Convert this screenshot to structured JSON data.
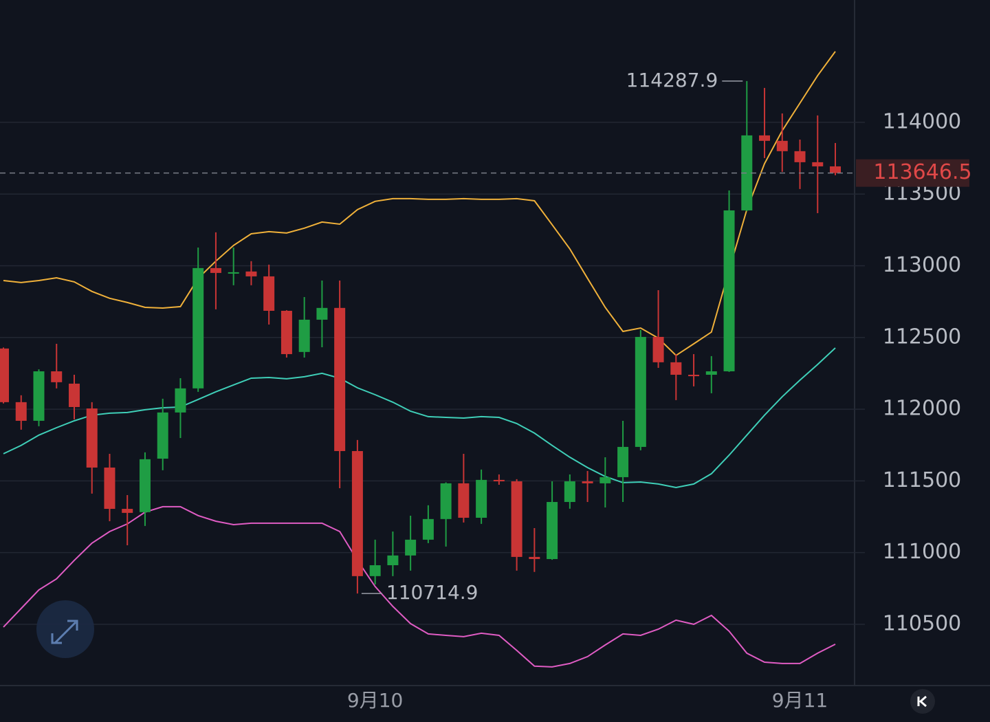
{
  "chart_data": {
    "type": "candlestick",
    "categories": [
      null,
      null,
      null,
      null,
      null,
      null,
      null,
      null,
      null,
      null,
      null,
      null,
      null,
      null,
      null,
      null,
      null,
      null,
      null,
      null,
      null,
      "9月10",
      null,
      null,
      null,
      null,
      null,
      null,
      null,
      null,
      null,
      null,
      null,
      null,
      null,
      null,
      null,
      null,
      null,
      null,
      null,
      null,
      null,
      null,
      null,
      "9月11",
      null,
      null
    ],
    "open": [
      112423,
      112049,
      111919,
      112264,
      112178,
      112005,
      111593,
      111305,
      111282,
      111655,
      111977,
      112145,
      112984,
      112945,
      112960,
      112926,
      112686,
      112399,
      112624,
      112706,
      111708,
      110836,
      110912,
      110980,
      111090,
      111234,
      111483,
      111243,
      111507,
      111497,
      110970,
      110955,
      111353,
      111497,
      111483,
      111526,
      111737,
      112504,
      112327,
      112240,
      112240,
      112264,
      113386,
      113909,
      113871,
      113799,
      113722,
      113693
    ],
    "high": [
      112430,
      112097,
      112278,
      112456,
      112240,
      112049,
      111689,
      111401,
      111699,
      112073,
      112216,
      113127,
      113233,
      113127,
      113032,
      113008,
      112690,
      112782,
      112897,
      112897,
      111785,
      111090,
      111147,
      111257,
      111330,
      111490,
      111689,
      111579,
      111545,
      111512,
      111171,
      111497,
      111545,
      111569,
      111665,
      111919,
      112552,
      112830,
      112384,
      112384,
      112370,
      113525,
      114287.9,
      114240,
      114062,
      113880,
      114048,
      113856
    ],
    "low": [
      112040,
      111857,
      111881,
      112145,
      111929,
      111411,
      111219,
      111051,
      111186,
      111574,
      111799,
      112121,
      112696,
      112864,
      112864,
      112590,
      112360,
      112360,
      112432,
      111449,
      110714.9,
      110778,
      110836,
      110874,
      111066,
      111042,
      111210,
      111200,
      111473,
      110874,
      110865,
      110950,
      111306,
      111353,
      111315,
      111353,
      111713,
      112288,
      112063,
      112159,
      112111,
      112260,
      113380,
      113751,
      113655,
      113535,
      113367,
      113631
    ],
    "close": [
      112049,
      111919,
      112264,
      112188,
      112015,
      111593,
      111305,
      111277,
      111651,
      111977,
      112145,
      112984,
      112950,
      112955,
      112926,
      112686,
      112384,
      112624,
      112706,
      111708,
      110836,
      110912,
      110980,
      111090,
      111234,
      111483,
      111243,
      111507,
      111497,
      110970,
      110955,
      111353,
      111497,
      111483,
      111526,
      111737,
      112504,
      112327,
      112240,
      112230,
      112264,
      113386,
      113909,
      113871,
      113799,
      113722,
      113693,
      113646.5
    ],
    "up_color": "#1f9d44",
    "down_color": "#c93535",
    "overlays": [
      {
        "color": "#f0b13a",
        "values": [
          112897,
          112883,
          112897,
          112916,
          112888,
          112821,
          112773,
          112744,
          112710,
          112705,
          112715,
          112912,
          113032,
          113142,
          113223,
          113238,
          113228,
          113262,
          113305,
          113290,
          113391,
          113449,
          113468,
          113468,
          113463,
          113463,
          113468,
          113463,
          113463,
          113468,
          113453,
          113286,
          113118,
          112912,
          112710,
          112542,
          112566,
          112495,
          112375,
          112456,
          112538,
          112969,
          113391,
          113712,
          113942,
          114134,
          114326,
          114494
        ]
      },
      {
        "color": "#3fcfb8",
        "values": [
          111689,
          111747,
          111819,
          111871,
          111919,
          111958,
          111972,
          111977,
          111996,
          112010,
          112015,
          112068,
          112121,
          112169,
          112216,
          112221,
          112212,
          112226,
          112250,
          112216,
          112149,
          112101,
          112049,
          111986,
          111948,
          111943,
          111938,
          111948,
          111943,
          111900,
          111833,
          111747,
          111665,
          111593,
          111531,
          111488,
          111492,
          111478,
          111454,
          111478,
          111550,
          111679,
          111819,
          111958,
          112087,
          112202,
          112312,
          112427
        ]
      },
      {
        "color": "#e05cc4",
        "values": [
          110481,
          110610,
          110740,
          110817,
          110946,
          111066,
          111147,
          111200,
          111282,
          111320,
          111320,
          111258,
          111219,
          111195,
          111205,
          111205,
          111205,
          111205,
          111205,
          111147,
          110946,
          110764,
          110625,
          110505,
          110433,
          110423,
          110414,
          110438,
          110423,
          110318,
          110208,
          110203,
          110227,
          110275,
          110356,
          110433,
          110423,
          110466,
          110529,
          110500,
          110562,
          110452,
          110299,
          110236,
          110227,
          110227,
          110299,
          110361
        ]
      }
    ],
    "ylim": [
      110073,
      114853
    ],
    "yticks": [
      110500,
      111000,
      111500,
      112000,
      112500,
      113000,
      113500,
      114000
    ],
    "grid": true
  }
}
